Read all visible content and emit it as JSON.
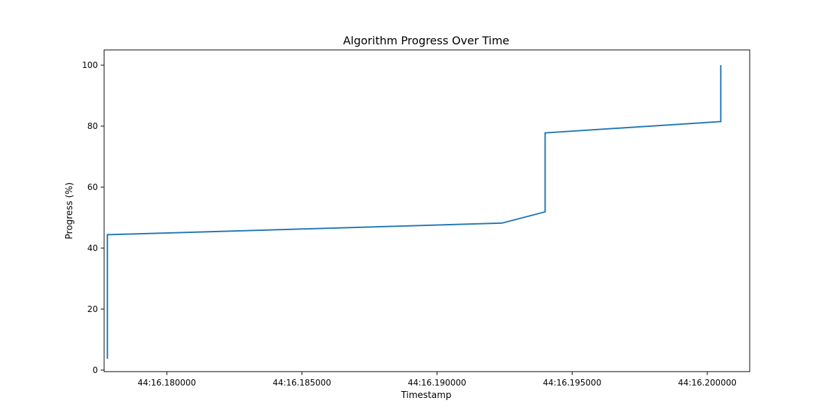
{
  "chart_data": {
    "type": "line",
    "title": "Algorithm Progress Over Time",
    "xlabel": "Timestamp",
    "ylabel": "Progress (%)",
    "x_tick_values": [
      0.18,
      0.185,
      0.19,
      0.195,
      0.2
    ],
    "x_tick_labels": [
      "44:16.180000",
      "44:16.185000",
      "44:16.190000",
      "44:16.195000",
      "44:16.200000"
    ],
    "y_tick_values": [
      0,
      20,
      40,
      60,
      80,
      100
    ],
    "y_tick_labels": [
      "0",
      "20",
      "40",
      "60",
      "80",
      "100"
    ],
    "xlim": [
      0.17768,
      0.20157
    ],
    "ylim": [
      -0.5,
      105
    ],
    "grid": false,
    "legend": "none",
    "series": [
      {
        "color": "#1f77b4",
        "x": [
          0.1778,
          0.1778,
          0.1924,
          0.194,
          0.194,
          0.2005,
          0.2005
        ],
        "y": [
          3.7,
          44.4,
          48.2,
          51.9,
          77.8,
          81.5,
          100
        ]
      }
    ]
  }
}
